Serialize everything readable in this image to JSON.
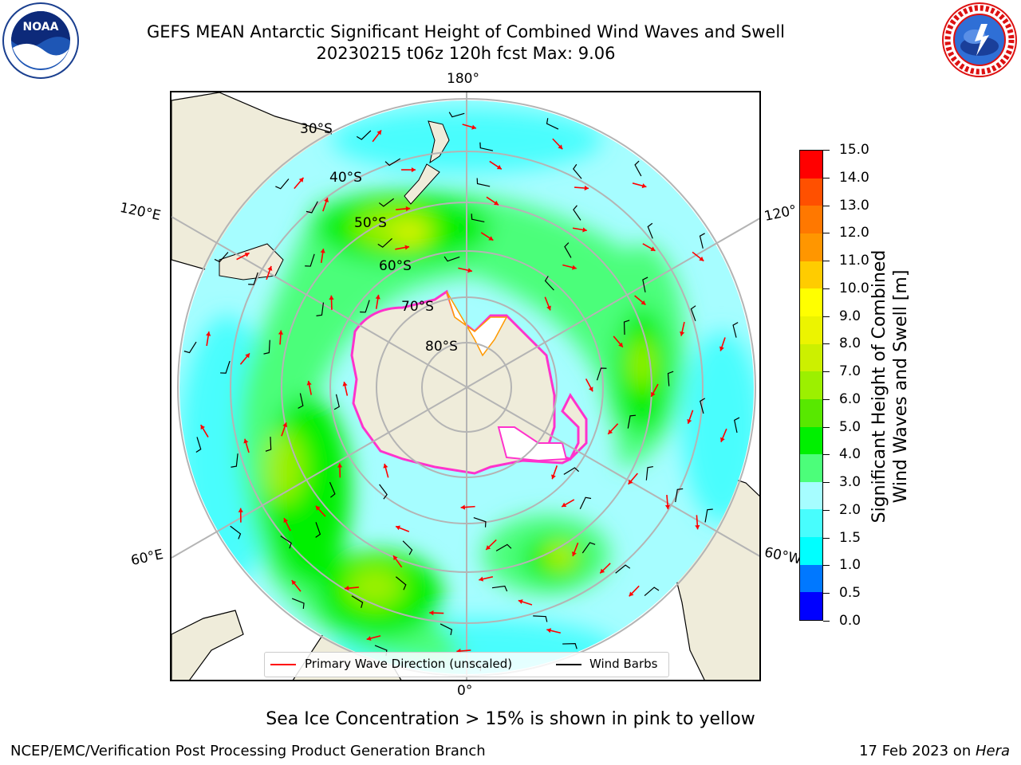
{
  "title_line1": "GEFS MEAN Antarctic Significant Height of Combined Wind Waves and Swell",
  "title_line2": "20230215 t06z 120h fcst   Max: 9.06",
  "map": {
    "longitude_labels": {
      "top": "180°",
      "left_upper": "120°E",
      "right_upper": "120°",
      "left_lower": "60°E",
      "right_lower": "60°W",
      "bottom": "0°"
    },
    "latitude_labels": [
      "30°S",
      "40°S",
      "50°S",
      "60°S",
      "70°S",
      "80°S"
    ],
    "colors": {
      "land": "#efecda",
      "ocean_base": "#a6fdff",
      "ice": "#ffffff",
      "graticule": "#b4b4b4",
      "wave_arrow": "#ff0000",
      "wind_barb": "#000000"
    }
  },
  "legend": {
    "wave_label": "Primary Wave Direction (unscaled)",
    "wind_label": "Wind Barbs"
  },
  "colorbar": {
    "title_line1": "Significant Height of Combined",
    "title_line2": "Wind Waves and Swell [m]",
    "ticks": [
      "0.0",
      "0.5",
      "1.0",
      "1.5",
      "2.0",
      "3.0",
      "4.0",
      "5.0",
      "6.0",
      "7.0",
      "8.0",
      "9.0",
      "10.0",
      "11.0",
      "12.0",
      "13.0",
      "14.0",
      "15.0"
    ],
    "colors": [
      "#0000ff",
      "#0078ff",
      "#00ffff",
      "#48fdfd",
      "#a6fdff",
      "#4cfe7a",
      "#00f000",
      "#58e800",
      "#9cf000",
      "#ccf000",
      "#ecf400",
      "#ffff00",
      "#ffcc00",
      "#ff9600",
      "#ff7800",
      "#ff5000",
      "#ff0000"
    ]
  },
  "subtitle": "Sea Ice Concentration > 15% is shown in pink to yellow",
  "footer_left": "NCEP/EMC/Verification Post Processing Product Generation Branch",
  "footer_right_date": "17 Feb 2023 on ",
  "footer_right_host": "Hera"
}
